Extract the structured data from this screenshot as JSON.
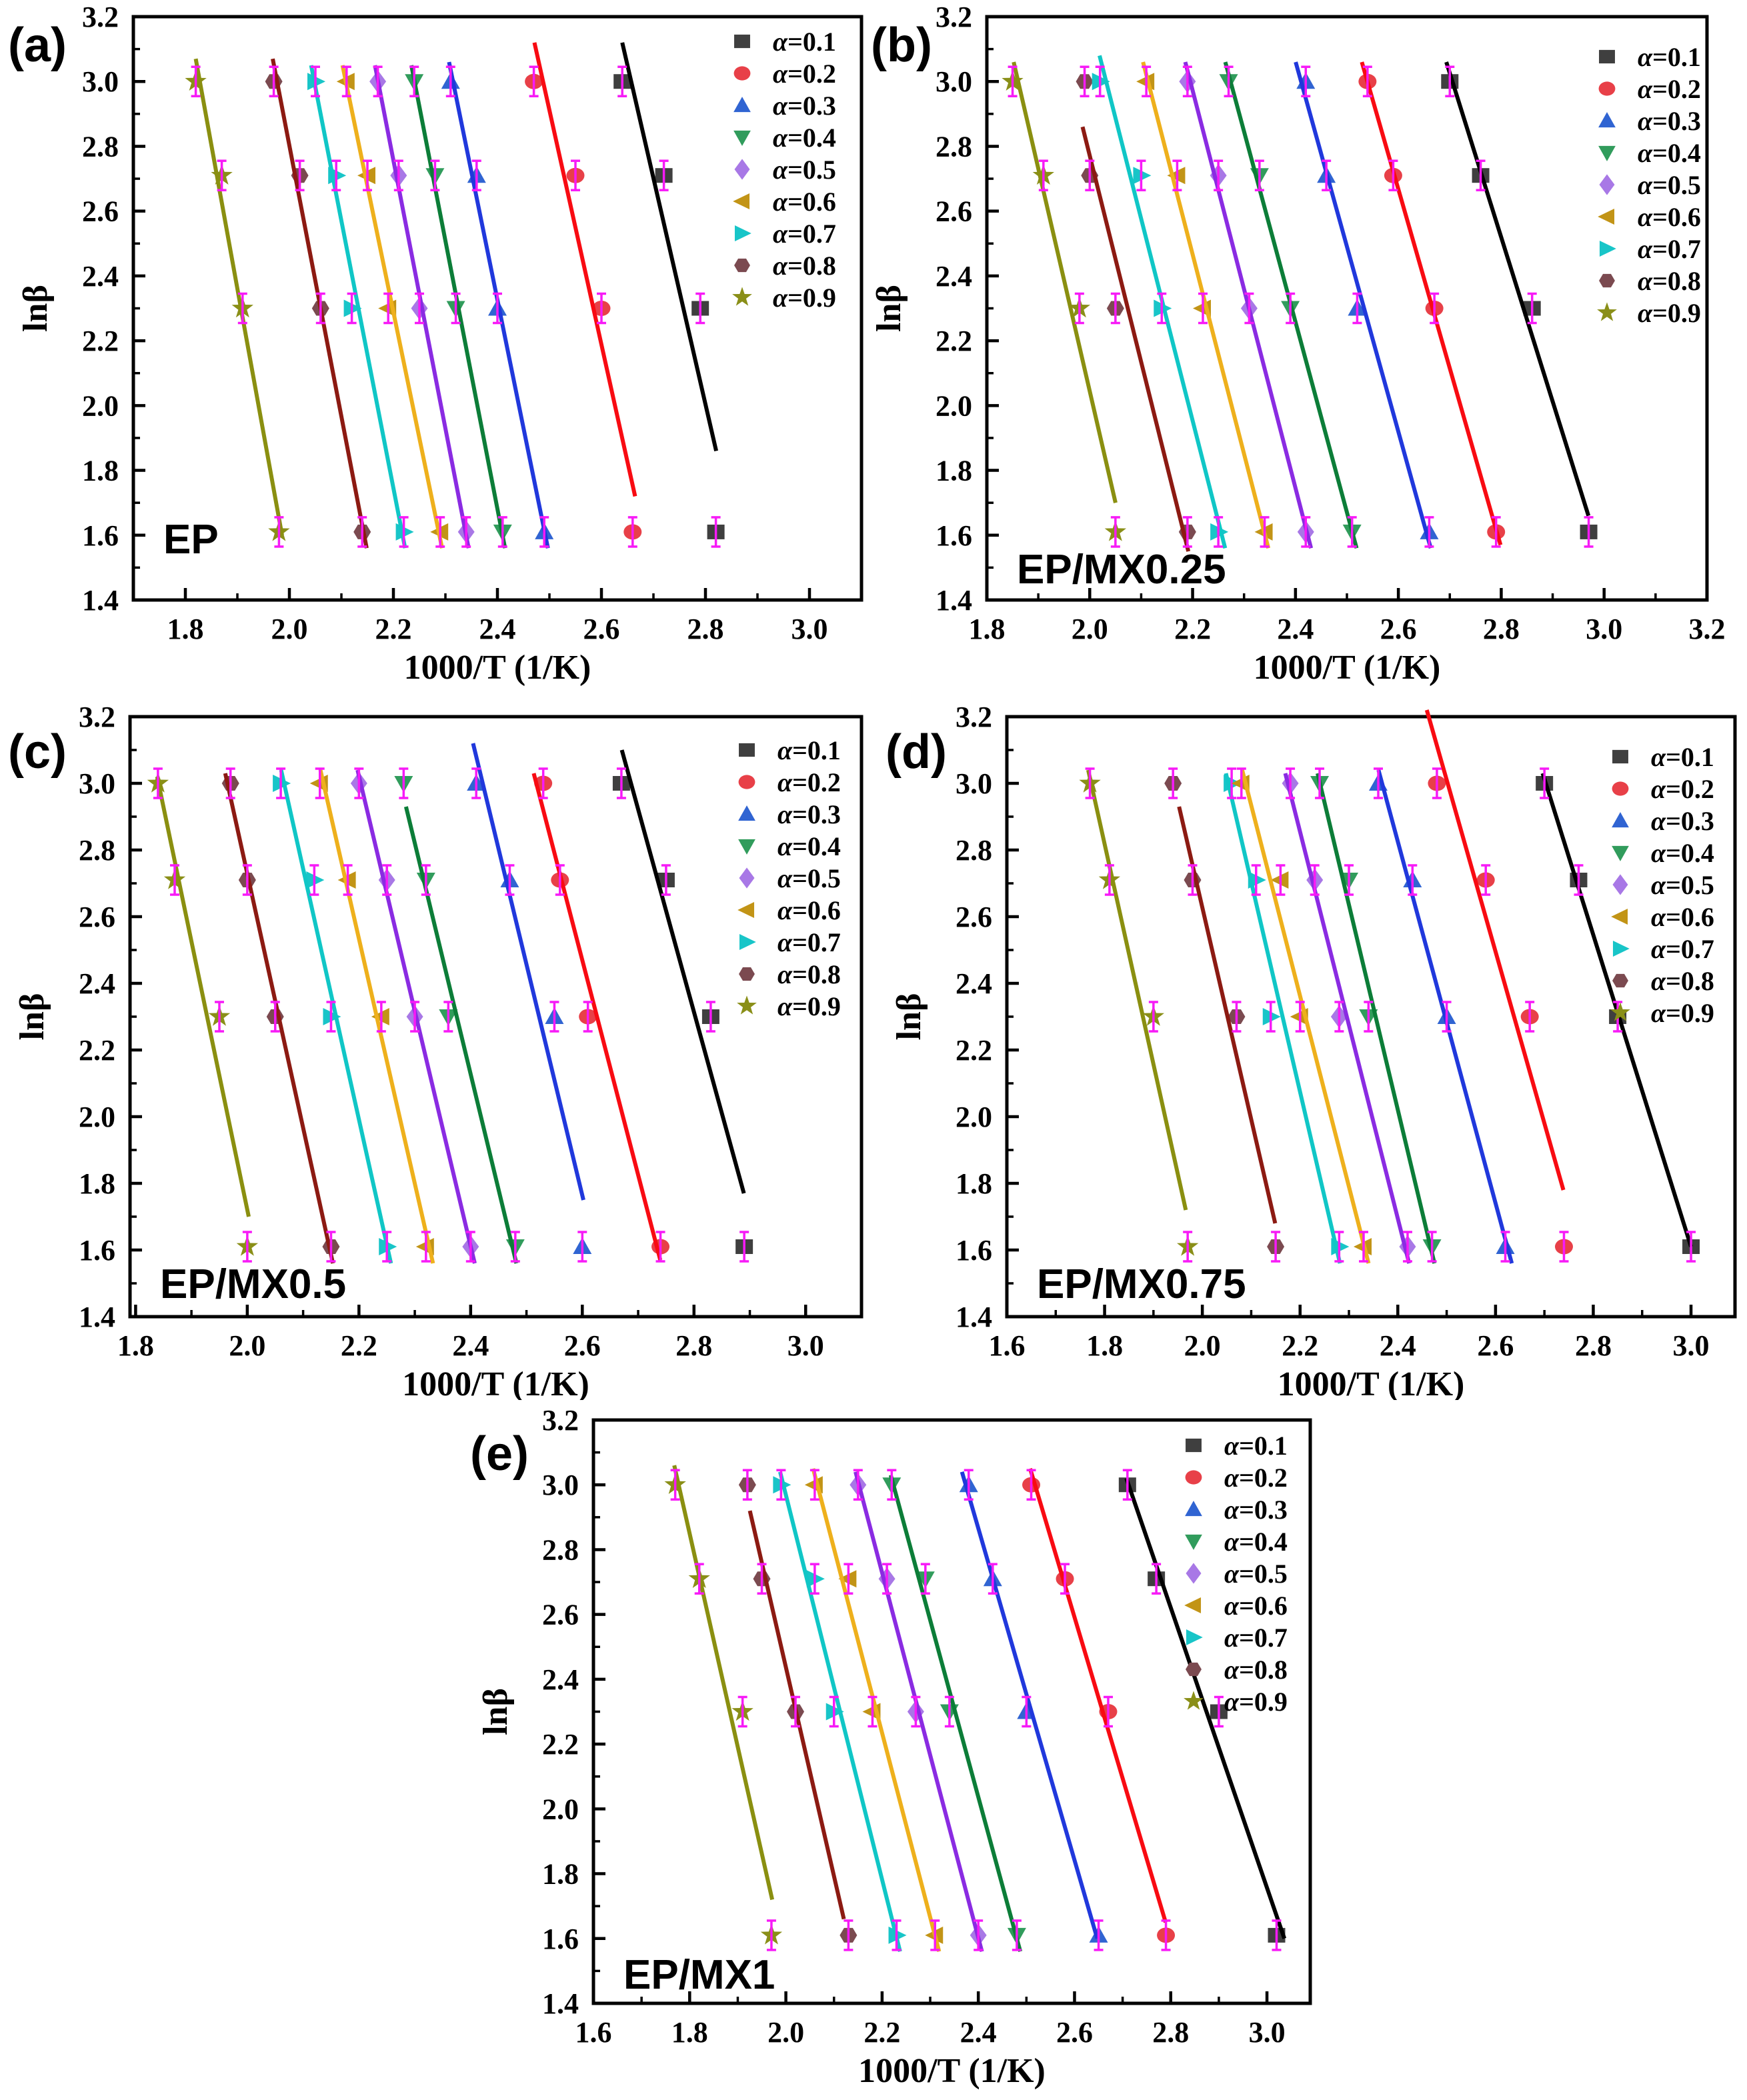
{
  "figure": {
    "background": "#ffffff"
  },
  "styles": {
    "axis_color": "#000000",
    "error_bar_color": "#f71af7",
    "series": [
      {
        "label": "α=0.1",
        "marker": "square",
        "marker_color": "#3f3f3f",
        "line_color": "#000000"
      },
      {
        "label": "α=0.2",
        "marker": "circle",
        "marker_color": "#e84048",
        "line_color": "#f80b12"
      },
      {
        "label": "α=0.3",
        "marker": "triangle-up",
        "marker_color": "#3064d2",
        "line_color": "#2038dc"
      },
      {
        "label": "α=0.4",
        "marker": "triangle-down",
        "marker_color": "#319c5c",
        "line_color": "#0c7d38"
      },
      {
        "label": "α=0.5",
        "marker": "diamond",
        "marker_color": "#a878e6",
        "line_color": "#8a2be2"
      },
      {
        "label": "α=0.6",
        "marker": "triangle-left",
        "marker_color": "#c29416",
        "line_color": "#eeb01c"
      },
      {
        "label": "α=0.7",
        "marker": "triangle-right",
        "marker_color": "#18c5c8",
        "line_color": "#10c6c6"
      },
      {
        "label": "α=0.8",
        "marker": "hexagon",
        "marker_color": "#7b4a50",
        "line_color": "#8c1a12"
      },
      {
        "label": "α=0.9",
        "marker": "star",
        "marker_color": "#8a8f18",
        "line_color": "#8a8f10"
      }
    ]
  },
  "chart_data": [
    {
      "id": "a",
      "type": "scatter",
      "panel_label": "(a)",
      "sample_label": "EP",
      "xlabel": "1000/T (1/K)",
      "ylabel": "lnβ",
      "xlim": [
        1.7,
        3.1
      ],
      "ylim": [
        1.4,
        3.2
      ],
      "xticks": [
        1.8,
        2.0,
        2.2,
        2.4,
        2.6,
        2.8,
        3.0
      ],
      "yticks": [
        1.4,
        1.6,
        1.8,
        2.0,
        2.2,
        2.4,
        2.6,
        2.8,
        3.0,
        3.2
      ],
      "lnbeta": [
        1.61,
        2.3,
        2.71,
        3.0
      ],
      "legend_position": "upper right",
      "series": [
        {
          "alpha": "0.1",
          "x": [
            2.82,
            2.79,
            2.72,
            2.64
          ],
          "line_y": [
            1.86,
            3.12
          ]
        },
        {
          "alpha": "0.2",
          "x": [
            2.66,
            2.6,
            2.55,
            2.47
          ],
          "line_y": [
            1.72,
            3.12
          ]
        },
        {
          "alpha": "0.3",
          "x": [
            2.49,
            2.4,
            2.36,
            2.31
          ],
          "line_y": [
            1.56,
            3.06
          ]
        },
        {
          "alpha": "0.4",
          "x": [
            2.41,
            2.32,
            2.28,
            2.24
          ],
          "line_y": [
            1.56,
            3.05
          ]
        },
        {
          "alpha": "0.5",
          "x": [
            2.34,
            2.25,
            2.21,
            2.17
          ],
          "line_y": [
            1.56,
            3.05
          ]
        },
        {
          "alpha": "0.6",
          "x": [
            2.29,
            2.19,
            2.15,
            2.11
          ],
          "line_y": [
            1.56,
            3.05
          ]
        },
        {
          "alpha": "0.7",
          "x": [
            2.22,
            2.12,
            2.09,
            2.05
          ],
          "line_y": [
            1.56,
            3.05
          ]
        },
        {
          "alpha": "0.8",
          "x": [
            2.14,
            2.06,
            2.02,
            1.97
          ],
          "line_y": [
            1.56,
            3.07
          ]
        },
        {
          "alpha": "0.9",
          "x": [
            1.98,
            1.91,
            1.87,
            1.82
          ],
          "line_y": [
            1.6,
            3.07
          ]
        }
      ]
    },
    {
      "id": "b",
      "type": "scatter",
      "panel_label": "(b)",
      "sample_label": "EP/MX0.25",
      "xlabel": "1000/T (1/K)",
      "ylabel": "lnβ",
      "xlim": [
        1.8,
        3.2
      ],
      "ylim": [
        1.4,
        3.2
      ],
      "xticks": [
        1.8,
        2.0,
        2.2,
        2.4,
        2.6,
        2.8,
        3.0,
        3.2
      ],
      "yticks": [
        1.4,
        1.6,
        1.8,
        2.0,
        2.2,
        2.4,
        2.6,
        2.8,
        3.0,
        3.2
      ],
      "lnbeta": [
        1.61,
        2.3,
        2.71,
        3.0
      ],
      "legend_position": "upper right",
      "series": [
        {
          "alpha": "0.1",
          "x": [
            2.97,
            2.86,
            2.76,
            2.7
          ],
          "line_y": [
            1.66,
            3.06
          ]
        },
        {
          "alpha": "0.2",
          "x": [
            2.79,
            2.67,
            2.59,
            2.54
          ],
          "line_y": [
            1.57,
            3.06
          ]
        },
        {
          "alpha": "0.3",
          "x": [
            2.66,
            2.52,
            2.46,
            2.42
          ],
          "line_y": [
            1.56,
            3.06
          ]
        },
        {
          "alpha": "0.4",
          "x": [
            2.51,
            2.39,
            2.33,
            2.27
          ],
          "line_y": [
            1.56,
            3.06
          ]
        },
        {
          "alpha": "0.5",
          "x": [
            2.42,
            2.31,
            2.25,
            2.19
          ],
          "line_y": [
            1.56,
            3.06
          ]
        },
        {
          "alpha": "0.6",
          "x": [
            2.34,
            2.22,
            2.17,
            2.11
          ],
          "line_y": [
            1.56,
            3.06
          ]
        },
        {
          "alpha": "0.7",
          "x": [
            2.25,
            2.14,
            2.1,
            2.02
          ],
          "line_y": [
            1.56,
            3.08
          ]
        },
        {
          "alpha": "0.8",
          "x": [
            2.19,
            2.05,
            2.0,
            1.99
          ],
          "line_y": [
            1.55,
            2.86
          ]
        },
        {
          "alpha": "0.9",
          "x": [
            2.05,
            1.98,
            1.91,
            1.85
          ],
          "line_y": [
            1.7,
            3.06
          ]
        }
      ]
    },
    {
      "id": "c",
      "type": "scatter",
      "panel_label": "(c)",
      "sample_label": "EP/MX0.5",
      "xlabel": "1000/T (1/K)",
      "ylabel": "lnβ",
      "xlim": [
        1.79,
        3.1
      ],
      "ylim": [
        1.4,
        3.2
      ],
      "xticks": [
        1.8,
        2.0,
        2.2,
        2.4,
        2.6,
        2.8,
        3.0
      ],
      "yticks": [
        1.4,
        1.6,
        1.8,
        2.0,
        2.2,
        2.4,
        2.6,
        2.8,
        3.0,
        3.2
      ],
      "lnbeta": [
        1.61,
        2.3,
        2.71,
        3.0
      ],
      "legend_position": "upper right",
      "series": [
        {
          "alpha": "0.1",
          "x": [
            2.89,
            2.83,
            2.75,
            2.67
          ],
          "line_y": [
            1.77,
            3.1
          ]
        },
        {
          "alpha": "0.2",
          "x": [
            2.74,
            2.61,
            2.56,
            2.53
          ],
          "line_y": [
            1.57,
            3.03
          ]
        },
        {
          "alpha": "0.3",
          "x": [
            2.6,
            2.55,
            2.47,
            2.41
          ],
          "line_y": [
            1.75,
            3.12
          ]
        },
        {
          "alpha": "0.4",
          "x": [
            2.48,
            2.36,
            2.32,
            2.28
          ],
          "line_y": [
            1.56,
            2.93
          ]
        },
        {
          "alpha": "0.5",
          "x": [
            2.4,
            2.3,
            2.25,
            2.2
          ],
          "line_y": [
            1.56,
            3.04
          ]
        },
        {
          "alpha": "0.6",
          "x": [
            2.32,
            2.24,
            2.18,
            2.13
          ],
          "line_y": [
            1.56,
            3.04
          ]
        },
        {
          "alpha": "0.7",
          "x": [
            2.25,
            2.15,
            2.12,
            2.06
          ],
          "line_y": [
            1.56,
            3.04
          ]
        },
        {
          "alpha": "0.8",
          "x": [
            2.15,
            2.05,
            2.0,
            1.97
          ],
          "line_y": [
            1.56,
            3.03
          ]
        },
        {
          "alpha": "0.9",
          "x": [
            2.0,
            1.95,
            1.87,
            1.84
          ],
          "line_y": [
            1.7,
            3.02
          ]
        }
      ]
    },
    {
      "id": "d",
      "type": "scatter",
      "panel_label": "(d)",
      "sample_label": "EP/MX0.75",
      "xlabel": "1000/T (1/K)",
      "ylabel": "lnβ",
      "xlim": [
        1.6,
        3.09
      ],
      "ylim": [
        1.4,
        3.2
      ],
      "xticks": [
        1.6,
        1.8,
        2.0,
        2.2,
        2.4,
        2.6,
        2.8,
        3.0
      ],
      "yticks": [
        1.4,
        1.6,
        1.8,
        2.0,
        2.2,
        2.4,
        2.6,
        2.8,
        3.0,
        3.2
      ],
      "lnbeta": [
        1.61,
        2.3,
        2.71,
        3.0
      ],
      "legend_position": "upper right",
      "series": [
        {
          "alpha": "0.1",
          "x": [
            3.0,
            2.85,
            2.77,
            2.7
          ],
          "line_y": [
            1.61,
            3.03
          ]
        },
        {
          "alpha": "0.2",
          "x": [
            2.74,
            2.67,
            2.58,
            2.48
          ],
          "line_y": [
            1.78,
            3.22
          ]
        },
        {
          "alpha": "0.3",
          "x": [
            2.62,
            2.5,
            2.43,
            2.36
          ],
          "line_y": [
            1.56,
            3.04
          ]
        },
        {
          "alpha": "0.4",
          "x": [
            2.47,
            2.34,
            2.3,
            2.24
          ],
          "line_y": [
            1.56,
            3.03
          ]
        },
        {
          "alpha": "0.5",
          "x": [
            2.42,
            2.28,
            2.23,
            2.18
          ],
          "line_y": [
            1.56,
            3.03
          ]
        },
        {
          "alpha": "0.6",
          "x": [
            2.33,
            2.2,
            2.16,
            2.08
          ],
          "line_y": [
            1.56,
            3.04
          ]
        },
        {
          "alpha": "0.7",
          "x": [
            2.28,
            2.14,
            2.11,
            2.06
          ],
          "line_y": [
            1.56,
            3.03
          ]
        },
        {
          "alpha": "0.8",
          "x": [
            2.15,
            2.07,
            1.98,
            1.94
          ],
          "line_y": [
            1.68,
            2.93
          ]
        },
        {
          "alpha": "0.9",
          "x": [
            1.97,
            1.9,
            1.81,
            1.77
          ],
          "line_y": [
            1.72,
            3.04
          ]
        }
      ]
    },
    {
      "id": "e",
      "type": "scatter",
      "panel_label": "(e)",
      "sample_label": "EP/MX1",
      "xlabel": "1000/T (1/K)",
      "ylabel": "lnβ",
      "xlim": [
        1.6,
        3.09
      ],
      "ylim": [
        1.4,
        3.2
      ],
      "xticks": [
        1.6,
        1.8,
        2.0,
        2.2,
        2.4,
        2.6,
        2.8,
        3.0
      ],
      "yticks": [
        1.4,
        1.6,
        1.8,
        2.0,
        2.2,
        2.4,
        2.6,
        2.8,
        3.0,
        3.2
      ],
      "lnbeta": [
        1.61,
        2.3,
        2.71,
        3.0
      ],
      "legend_position": "upper right",
      "series": [
        {
          "alpha": "0.1",
          "x": [
            3.02,
            2.9,
            2.77,
            2.71
          ],
          "line_y": [
            1.6,
            3.02
          ]
        },
        {
          "alpha": "0.2",
          "x": [
            2.79,
            2.67,
            2.58,
            2.51
          ],
          "line_y": [
            1.65,
            3.05
          ]
        },
        {
          "alpha": "0.3",
          "x": [
            2.65,
            2.5,
            2.43,
            2.38
          ],
          "line_y": [
            1.6,
            3.04
          ]
        },
        {
          "alpha": "0.4",
          "x": [
            2.48,
            2.34,
            2.29,
            2.22
          ],
          "line_y": [
            1.56,
            3.03
          ]
        },
        {
          "alpha": "0.5",
          "x": [
            2.4,
            2.27,
            2.21,
            2.15
          ],
          "line_y": [
            1.56,
            3.04
          ]
        },
        {
          "alpha": "0.6",
          "x": [
            2.31,
            2.18,
            2.13,
            2.06
          ],
          "line_y": [
            1.56,
            3.05
          ]
        },
        {
          "alpha": "0.7",
          "x": [
            2.23,
            2.1,
            2.06,
            1.99
          ],
          "line_y": [
            1.56,
            3.04
          ]
        },
        {
          "alpha": "0.8",
          "x": [
            2.13,
            2.02,
            1.95,
            1.92
          ],
          "line_y": [
            1.66,
            2.92
          ]
        },
        {
          "alpha": "0.9",
          "x": [
            1.97,
            1.91,
            1.82,
            1.77
          ],
          "line_y": [
            1.72,
            3.06
          ]
        }
      ]
    }
  ]
}
